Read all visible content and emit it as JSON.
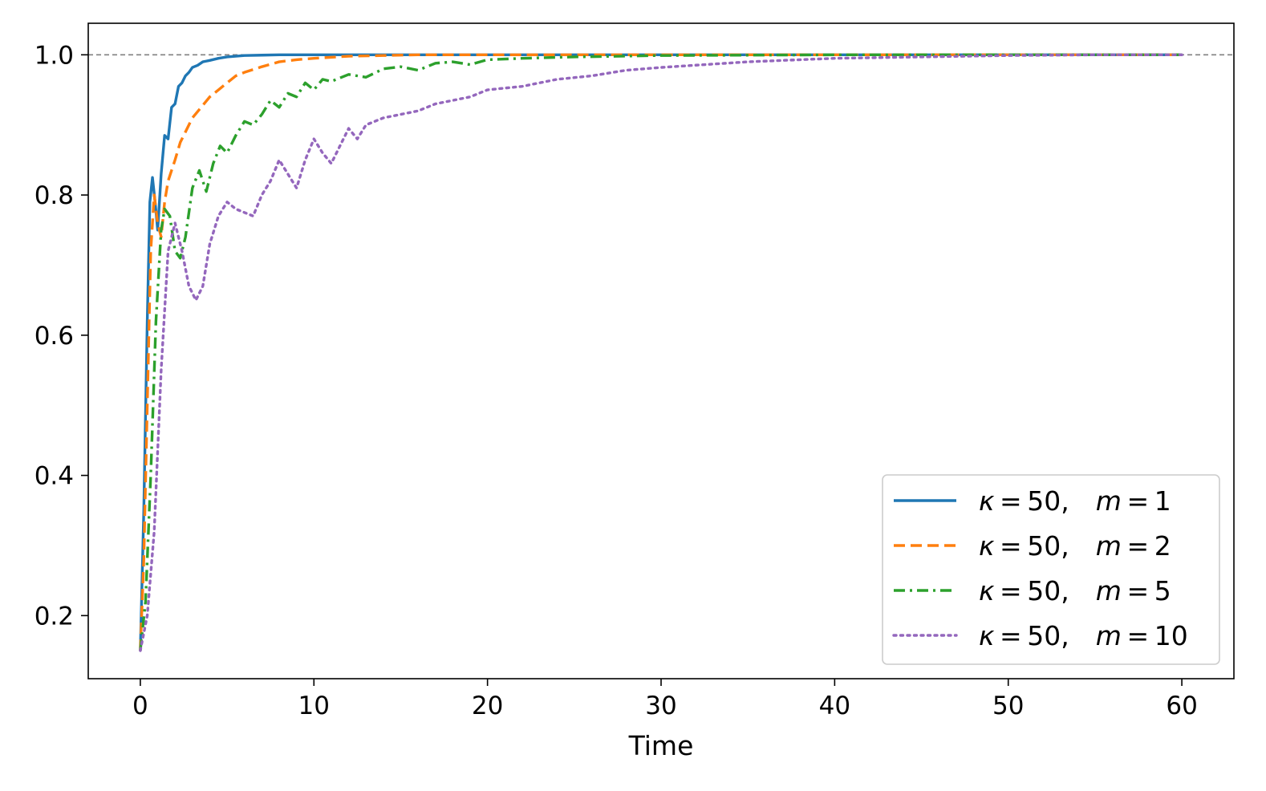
{
  "chart_data": {
    "type": "line",
    "title": "",
    "xlabel": "Time",
    "ylabel": "",
    "xlim": [
      -3,
      63
    ],
    "ylim": [
      0.11,
      1.045
    ],
    "xticks": [
      0,
      10,
      20,
      30,
      40,
      50,
      60
    ],
    "yticks": [
      0.2,
      0.4,
      0.6,
      0.8,
      1.0
    ],
    "xtick_labels": [
      "0",
      "10",
      "20",
      "30",
      "40",
      "50",
      "60"
    ],
    "ytick_labels": [
      "0.2",
      "0.4",
      "0.6",
      "0.8",
      "1.0"
    ],
    "reference_line": {
      "y": 1.0,
      "style": "dashed",
      "color": "#808080"
    },
    "grid": false,
    "legend_position": "lower right",
    "series": [
      {
        "name": "κ = 50,  m = 1",
        "legend": {
          "symbol": "κ",
          "kappa": "50",
          "m_symbol": "m",
          "m": "1"
        },
        "color": "#1f77b4",
        "dash": "solid",
        "x": [
          0,
          0.2,
          0.4,
          0.55,
          0.7,
          0.85,
          1.0,
          1.2,
          1.4,
          1.6,
          1.8,
          2.0,
          2.2,
          2.4,
          2.6,
          2.8,
          3.0,
          3.3,
          3.6,
          4.0,
          4.5,
          5.0,
          5.5,
          6,
          7,
          8,
          10,
          15,
          20,
          30,
          40,
          50,
          60
        ],
        "y": [
          0.15,
          0.35,
          0.62,
          0.79,
          0.825,
          0.79,
          0.75,
          0.83,
          0.885,
          0.88,
          0.925,
          0.93,
          0.955,
          0.96,
          0.97,
          0.975,
          0.982,
          0.985,
          0.99,
          0.992,
          0.995,
          0.997,
          0.998,
          0.999,
          0.9995,
          1.0,
          1.0,
          1.0,
          1.0,
          1.0,
          1.0,
          1.0,
          1.0
        ]
      },
      {
        "name": "κ = 50,  m = 2",
        "legend": {
          "symbol": "κ",
          "kappa": "50",
          "m_symbol": "m",
          "m": "2"
        },
        "color": "#ff7f0e",
        "dash": "dashed",
        "x": [
          0,
          0.2,
          0.4,
          0.6,
          0.8,
          1.0,
          1.2,
          1.4,
          1.6,
          1.8,
          2.0,
          2.3,
          2.6,
          3.0,
          3.5,
          4.0,
          4.5,
          5.0,
          5.5,
          6.0,
          7.0,
          8.0,
          9.0,
          10,
          12,
          14,
          16,
          20,
          25,
          30,
          40,
          50,
          60
        ],
        "y": [
          0.15,
          0.28,
          0.5,
          0.72,
          0.8,
          0.76,
          0.74,
          0.79,
          0.82,
          0.835,
          0.85,
          0.875,
          0.89,
          0.91,
          0.925,
          0.94,
          0.95,
          0.96,
          0.97,
          0.975,
          0.983,
          0.99,
          0.993,
          0.995,
          0.998,
          0.999,
          1.0,
          1.0,
          1.0,
          1.0,
          1.0,
          1.0,
          1.0
        ]
      },
      {
        "name": "κ = 50,  m = 5",
        "legend": {
          "symbol": "κ",
          "kappa": "50",
          "m_symbol": "m",
          "m": "5"
        },
        "color": "#2ca02c",
        "dash": "dashdot",
        "x": [
          0,
          0.3,
          0.6,
          0.9,
          1.2,
          1.4,
          1.7,
          2.0,
          2.3,
          2.6,
          3.0,
          3.4,
          3.8,
          4.2,
          4.6,
          5.0,
          5.5,
          6.0,
          6.5,
          7.0,
          7.5,
          8.0,
          8.5,
          9.0,
          9.5,
          10.0,
          10.5,
          11.0,
          12.0,
          13.0,
          14.0,
          15.0,
          16.0,
          17.0,
          18.0,
          19.0,
          20.0,
          22.0,
          25.0,
          30.0,
          40.0,
          50.0,
          60.0
        ],
        "y": [
          0.15,
          0.22,
          0.4,
          0.62,
          0.75,
          0.78,
          0.77,
          0.72,
          0.71,
          0.74,
          0.81,
          0.835,
          0.805,
          0.845,
          0.87,
          0.86,
          0.885,
          0.905,
          0.9,
          0.915,
          0.935,
          0.925,
          0.945,
          0.94,
          0.96,
          0.95,
          0.965,
          0.962,
          0.972,
          0.968,
          0.98,
          0.983,
          0.978,
          0.988,
          0.99,
          0.986,
          0.993,
          0.995,
          0.997,
          0.999,
          1.0,
          1.0,
          1.0
        ]
      },
      {
        "name": "κ = 50,  m = 10",
        "legend": {
          "symbol": "κ",
          "kappa": "50",
          "m_symbol": "m",
          "m": "10"
        },
        "color": "#9467bd",
        "dash": "dotted",
        "x": [
          0,
          0.4,
          0.8,
          1.2,
          1.6,
          2.0,
          2.4,
          2.8,
          3.2,
          3.6,
          4.0,
          4.5,
          5.0,
          5.5,
          6.0,
          6.5,
          7.0,
          7.5,
          8.0,
          8.5,
          9.0,
          9.5,
          10.0,
          10.5,
          11.0,
          11.5,
          12.0,
          12.5,
          13.0,
          14.0,
          15.0,
          16.0,
          17.0,
          18.0,
          19.0,
          20.0,
          22.0,
          24.0,
          26.0,
          28.0,
          30.0,
          35.0,
          40.0,
          45.0,
          50.0,
          55.0,
          60.0
        ],
        "y": [
          0.15,
          0.2,
          0.32,
          0.55,
          0.72,
          0.76,
          0.72,
          0.67,
          0.65,
          0.67,
          0.73,
          0.77,
          0.79,
          0.78,
          0.775,
          0.77,
          0.8,
          0.82,
          0.85,
          0.83,
          0.81,
          0.85,
          0.88,
          0.86,
          0.845,
          0.87,
          0.895,
          0.88,
          0.9,
          0.91,
          0.915,
          0.92,
          0.93,
          0.935,
          0.94,
          0.95,
          0.955,
          0.965,
          0.97,
          0.978,
          0.982,
          0.99,
          0.995,
          0.997,
          0.999,
          1.0,
          1.0
        ]
      }
    ]
  }
}
